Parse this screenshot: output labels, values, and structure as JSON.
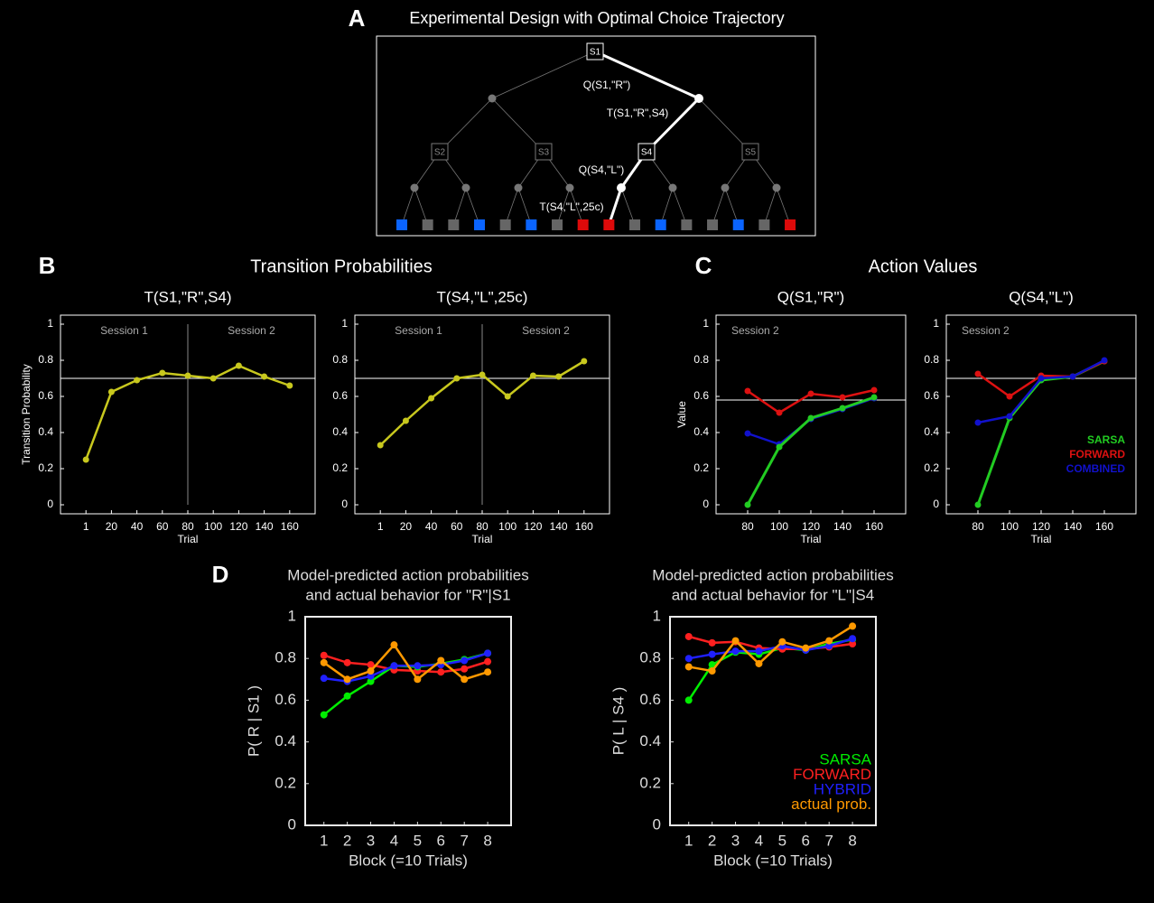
{
  "panel_labels": [
    "A",
    "B",
    "C",
    "D"
  ],
  "panel_titles": [
    "Experimental Design with Optimal Choice Trajectory",
    "Transition Probabilities",
    "Action Values"
  ],
  "diagram": {
    "nodes": [
      {
        "label": "S1"
      },
      {
        "label": "S2"
      },
      {
        "label": "S3"
      },
      {
        "label": "S4"
      },
      {
        "label": "S5"
      }
    ],
    "edge_labels": [
      "Q(S1,\"R\")",
      "T(S1,\"R\",S4)",
      "Q(S4,\"L\")",
      "T(S4,\"L\",25c)"
    ],
    "leaf_colors": [
      "#0a64ff",
      "#666666",
      "#666666",
      "#0a64ff",
      "#666666",
      "#0a64ff",
      "#666666",
      "#dd0a0a",
      "#dd0a0a",
      "#666666",
      "#0a64ff",
      "#666666",
      "#666666",
      "#0a64ff",
      "#666666",
      "#dd0a0a"
    ]
  },
  "chart_data": [
    {
      "type": "line",
      "title": "T(S1,\"R\",S4)",
      "x_label": "Trial",
      "y_label": "Transition Probability",
      "categories": [
        "1",
        "20",
        "40",
        "60",
        "80",
        "100",
        "120",
        "140",
        "160"
      ],
      "values": [
        0.25,
        0.625,
        0.69,
        0.73,
        0.715,
        0.7,
        0.77,
        0.71,
        0.66
      ],
      "color": "#c8c81e",
      "ylim": [
        -0.05,
        1.05
      ],
      "yticks": [
        0,
        0.2,
        0.4,
        0.6,
        0.8,
        1
      ],
      "hline": 0.7,
      "vline_category": "80",
      "session_labels": [
        "Session 1",
        "Session 2"
      ]
    },
    {
      "type": "line",
      "title": "T(S4,\"L\",25c)",
      "x_label": "Trial",
      "categories": [
        "1",
        "20",
        "40",
        "60",
        "80",
        "100",
        "120",
        "140",
        "160"
      ],
      "values": [
        0.33,
        0.465,
        0.59,
        0.7,
        0.72,
        0.6,
        0.715,
        0.71,
        0.795
      ],
      "color": "#c8c81e",
      "ylim": [
        -0.05,
        1.05
      ],
      "yticks": [
        0,
        0.2,
        0.4,
        0.6,
        0.8,
        1
      ],
      "hline": 0.7,
      "vline_category": "80",
      "session_labels": [
        "Session 1",
        "Session 2"
      ]
    },
    {
      "type": "line",
      "title": "Q(S1,\"R\")",
      "x_label": "Trial",
      "y_label": "Value",
      "categories": [
        "80",
        "100",
        "120",
        "140",
        "160"
      ],
      "series": [
        {
          "color": "#1111cc",
          "values": [
            0.395,
            0.335,
            0.475,
            0.53,
            0.59
          ]
        },
        {
          "color": "#dd1111",
          "values": [
            0.63,
            0.51,
            0.615,
            0.595,
            0.635
          ]
        },
        {
          "color": "#22cc22",
          "values": [
            0,
            0.32,
            0.48,
            0.535,
            0.595
          ]
        }
      ],
      "ylim": [
        -0.05,
        1.05
      ],
      "yticks": [
        0,
        0.2,
        0.4,
        0.6,
        0.8,
        1
      ],
      "hline": 0.58,
      "session_labels": [
        "Session 2"
      ]
    },
    {
      "type": "line",
      "title": "Q(S4,\"L\")",
      "x_label": "Trial",
      "categories": [
        "80",
        "100",
        "120",
        "140",
        "160"
      ],
      "series": [
        {
          "name": "SARSA",
          "color": "#22cc22",
          "values": [
            0,
            0.48,
            0.69,
            0.71,
            0.795
          ]
        },
        {
          "name": "FORWARD",
          "color": "#dd1111",
          "values": [
            0.725,
            0.6,
            0.715,
            0.71,
            0.795
          ]
        },
        {
          "name": "COMBINED",
          "color": "#1111cc",
          "values": [
            0.455,
            0.49,
            0.7,
            0.71,
            0.8
          ]
        }
      ],
      "ylim": [
        -0.05,
        1.05
      ],
      "yticks": [
        0,
        0.2,
        0.4,
        0.6,
        0.8,
        1
      ],
      "hline": 0.7,
      "session_labels": [
        "Session 2"
      ],
      "legend": "lower right"
    },
    {
      "type": "line",
      "title": [
        "Model-predicted action probabilities",
        "and actual behavior for \"R\"|S1"
      ],
      "x_label": "Block (=10 Trials)",
      "y_label": "P( R | S1 )",
      "x": [
        1,
        2,
        3,
        4,
        5,
        6,
        7,
        8
      ],
      "xlim": [
        0.2,
        9
      ],
      "xticks": [
        1,
        2,
        3,
        4,
        5,
        6,
        7,
        8
      ],
      "ylim": [
        0,
        1
      ],
      "yticks": [
        0,
        0.2,
        0.4,
        0.6,
        0.8,
        1
      ],
      "series": [
        {
          "color": "#ff2020",
          "values": [
            0.815,
            0.78,
            0.77,
            0.745,
            0.74,
            0.735,
            0.75,
            0.785
          ]
        },
        {
          "color": "#00ee00",
          "values": [
            0.53,
            0.62,
            0.69,
            0.765,
            0.76,
            0.775,
            0.795,
            0.825
          ]
        },
        {
          "color": "#2020ff",
          "values": [
            0.705,
            0.69,
            0.715,
            0.765,
            0.765,
            0.77,
            0.79,
            0.825
          ]
        },
        {
          "color": "#ff9900",
          "values": [
            0.78,
            0.7,
            0.74,
            0.865,
            0.7,
            0.79,
            0.7,
            0.735
          ]
        }
      ]
    },
    {
      "type": "line",
      "title": [
        "Model-predicted action probabilities",
        "and actual behavior for \"L\"|S4"
      ],
      "x_label": "Block (=10 Trials)",
      "y_label": "P( L | S4 )",
      "x": [
        1,
        2,
        3,
        4,
        5,
        6,
        7,
        8
      ],
      "xlim": [
        0.2,
        9
      ],
      "xticks": [
        1,
        2,
        3,
        4,
        5,
        6,
        7,
        8
      ],
      "ylim": [
        0,
        1
      ],
      "yticks": [
        0,
        0.2,
        0.4,
        0.6,
        0.8,
        1
      ],
      "series": [
        {
          "name": "SARSA",
          "color": "#00ee00",
          "values": [
            0.6,
            0.77,
            0.83,
            0.82,
            0.85,
            0.84,
            0.87,
            0.89
          ]
        },
        {
          "name": "FORWARD",
          "color": "#ff2020",
          "values": [
            0.905,
            0.875,
            0.88,
            0.85,
            0.845,
            0.845,
            0.855,
            0.87
          ]
        },
        {
          "name": "HYBRID",
          "color": "#2020ff",
          "values": [
            0.8,
            0.82,
            0.835,
            0.835,
            0.86,
            0.84,
            0.86,
            0.895
          ]
        },
        {
          "name": "actual prob.",
          "color": "#ff9900",
          "values": [
            0.76,
            0.74,
            0.885,
            0.775,
            0.88,
            0.85,
            0.885,
            0.955
          ]
        }
      ],
      "legend": "lower right"
    }
  ]
}
